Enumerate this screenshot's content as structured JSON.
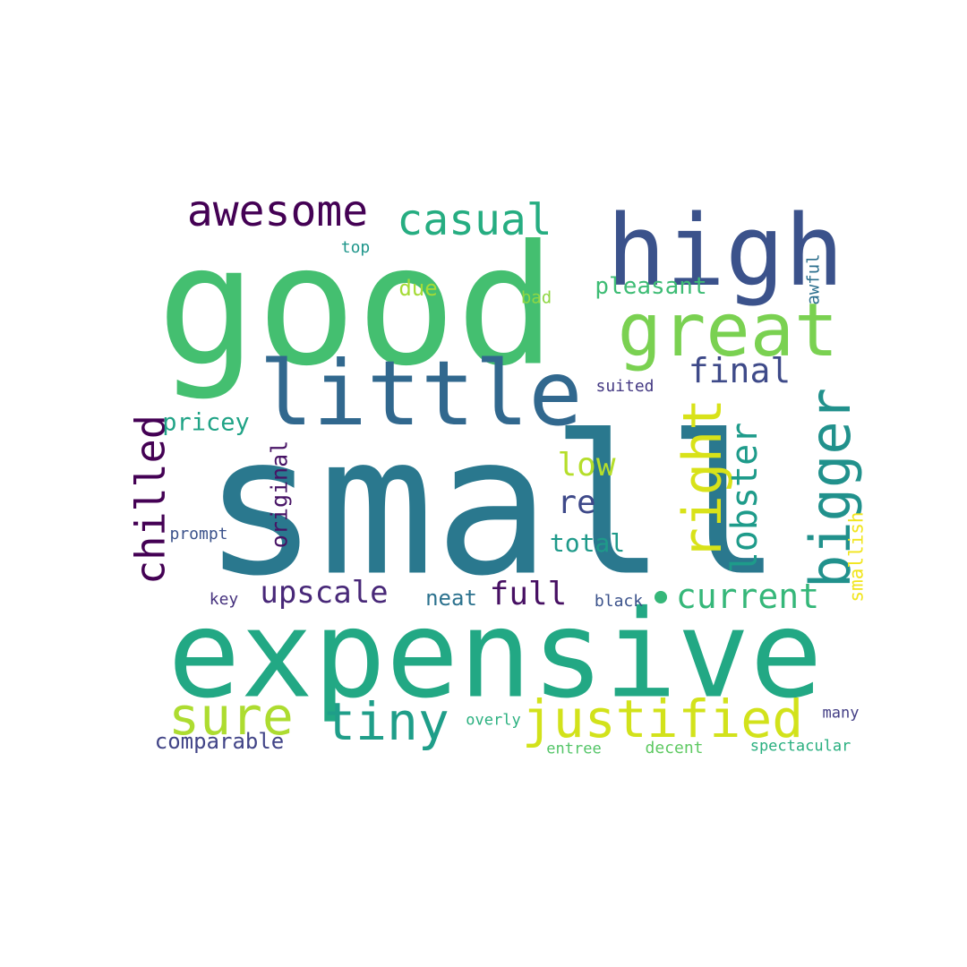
{
  "words": [
    {
      "text": "small",
      "color": "#2a788e",
      "orientation": "horizontal"
    },
    {
      "text": "good",
      "color": "#44bf70",
      "orientation": "horizontal"
    },
    {
      "text": "expensive",
      "color": "#22a884",
      "orientation": "horizontal"
    },
    {
      "text": "high",
      "color": "#3b528b",
      "orientation": "horizontal"
    },
    {
      "text": "little",
      "color": "#31688e",
      "orientation": "horizontal"
    },
    {
      "text": "great",
      "color": "#7ad151",
      "orientation": "horizontal"
    },
    {
      "text": "justified",
      "color": "#d2e21b",
      "orientation": "horizontal"
    },
    {
      "text": "bigger",
      "color": "#21918c",
      "orientation": "vertical"
    },
    {
      "text": "right",
      "color": "#d8e219",
      "orientation": "vertical"
    },
    {
      "text": "tiny",
      "color": "#1f9e89",
      "orientation": "horizontal"
    },
    {
      "text": "sure",
      "color": "#addc30",
      "orientation": "horizontal"
    },
    {
      "text": "awesome",
      "color": "#440154",
      "orientation": "horizontal"
    },
    {
      "text": "casual",
      "color": "#26ad81",
      "orientation": "horizontal"
    },
    {
      "text": "chilled",
      "color": "#440154",
      "orientation": "vertical"
    },
    {
      "text": "lobster",
      "color": "#1e9b8a",
      "orientation": "vertical"
    },
    {
      "text": "current",
      "color": "#35b779",
      "orientation": "horizontal"
    },
    {
      "text": "final",
      "color": "#3e4a89",
      "orientation": "horizontal"
    },
    {
      "text": "upscale",
      "color": "#482878",
      "orientation": "horizontal"
    },
    {
      "text": "full",
      "color": "#471063",
      "orientation": "horizontal"
    },
    {
      "text": "low",
      "color": "#b5de2b",
      "orientation": "horizontal"
    },
    {
      "text": "re",
      "color": "#3e4989",
      "orientation": "horizontal"
    },
    {
      "text": "total",
      "color": "#1f9a8a",
      "orientation": "horizontal"
    },
    {
      "text": "pricey",
      "color": "#20a386",
      "orientation": "horizontal"
    },
    {
      "text": "original",
      "color": "#471365",
      "orientation": "vertical"
    },
    {
      "text": "comparable",
      "color": "#414487",
      "orientation": "horizontal"
    },
    {
      "text": "pleasant",
      "color": "#3dbc74",
      "orientation": "horizontal"
    },
    {
      "text": "neat",
      "color": "#2c728e",
      "orientation": "horizontal"
    },
    {
      "text": "smallish",
      "color": "#f1e51d",
      "orientation": "vertical"
    },
    {
      "text": "due",
      "color": "#a5db36",
      "orientation": "horizontal"
    },
    {
      "text": "awful",
      "color": "#2d708e",
      "orientation": "vertical"
    },
    {
      "text": "bad",
      "color": "#8fd744",
      "orientation": "horizontal"
    },
    {
      "text": "top",
      "color": "#1f968b",
      "orientation": "horizontal"
    },
    {
      "text": "suited",
      "color": "#443983",
      "orientation": "horizontal"
    },
    {
      "text": "prompt",
      "color": "#3b528b",
      "orientation": "horizontal"
    },
    {
      "text": "key",
      "color": "#46327e",
      "orientation": "horizontal"
    },
    {
      "text": "black",
      "color": "#3b528b",
      "orientation": "horizontal"
    },
    {
      "text": "overly",
      "color": "#2ab07f",
      "orientation": "horizontal"
    },
    {
      "text": "many",
      "color": "#433e85",
      "orientation": "horizontal"
    },
    {
      "text": "entree",
      "color": "#54c568",
      "orientation": "horizontal"
    },
    {
      "text": "decent",
      "color": "#5ec962",
      "orientation": "horizontal"
    },
    {
      "text": "spectacular",
      "color": "#29af7f",
      "orientation": "horizontal"
    }
  ]
}
